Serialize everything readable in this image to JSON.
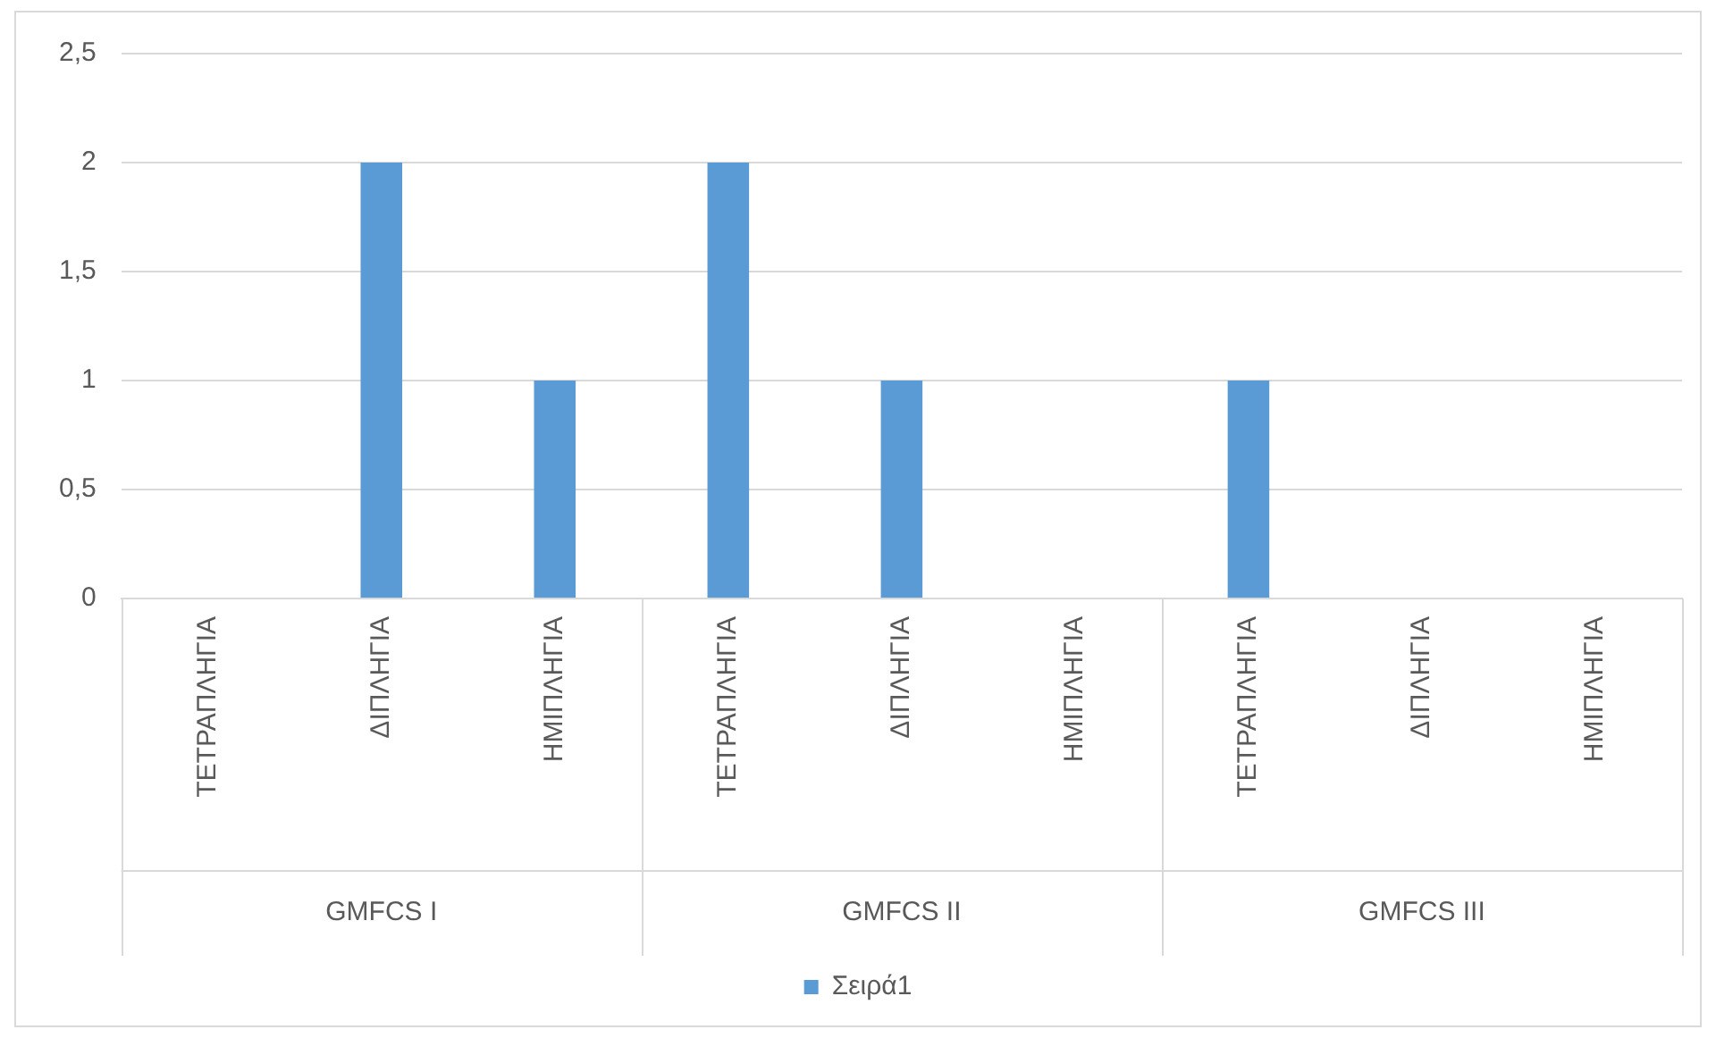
{
  "chart_data": {
    "type": "bar",
    "categories": [
      "ΤΕΤΡΑΠΛΗΓΙΑ",
      "ΔΙΠΛΗΓΙΑ",
      "ΗΜΙΠΛΗΓΙΑ",
      "ΤΕΤΡΑΠΛΗΓΙΑ",
      "ΔΙΠΛΗΓΙΑ",
      "ΗΜΙΠΛΗΓΙΑ",
      "ΤΕΤΡΑΠΛΗΓΙΑ",
      "ΔΙΠΛΗΓΙΑ",
      "ΗΜΙΠΛΗΓΙΑ"
    ],
    "series": [
      {
        "name": "Σειρά1",
        "color": "#5b9bd5",
        "values": [
          0,
          2,
          1,
          2,
          1,
          0,
          1,
          0,
          0
        ]
      }
    ],
    "ylim": [
      0,
      2.5
    ],
    "yticks": [
      0,
      {
        "value": 0.5,
        "label": "0,5"
      },
      1,
      {
        "value": 1.5,
        "label": "1,5"
      },
      2,
      {
        "value": 2.5,
        "label": "2,5"
      }
    ],
    "grid": "y",
    "legend": "bottom",
    "annotations": [
      "GMFCS I",
      "GMFCS II",
      "GMFCS III"
    ]
  }
}
